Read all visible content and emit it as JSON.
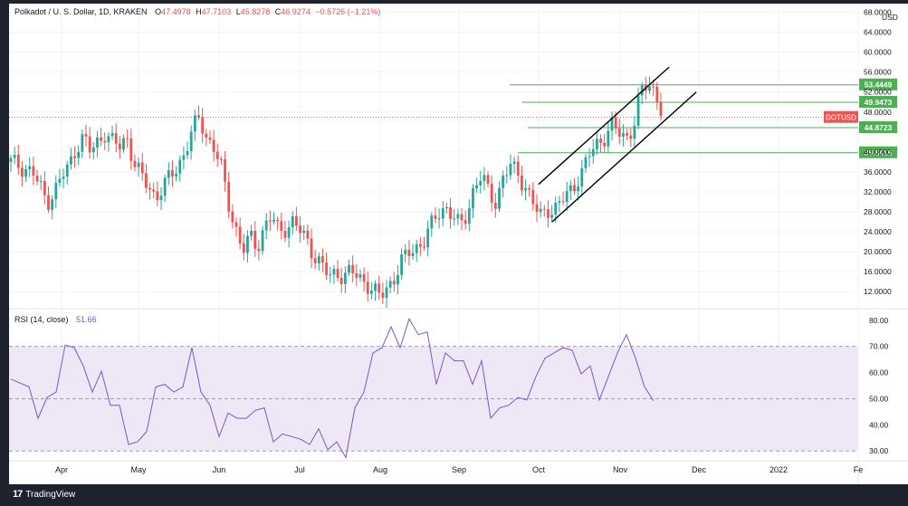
{
  "header": {
    "symbol": "Polkadot / U. S. Dollar, 1D, KRAKEN",
    "o_label": "O",
    "o_value": "47.4978",
    "h_label": "H",
    "h_value": "47.7103",
    "l_label": "L",
    "l_value": "45.8278",
    "c_label": "C",
    "c_value": "46.9274",
    "change": "−0.5726 (−1.21%)"
  },
  "rsi": {
    "title": "RSI (14, close)",
    "value": "51.66"
  },
  "footer": {
    "brand": "TradingView"
  },
  "colors": {
    "up": "#26a69a",
    "down": "#ef5350",
    "level": "#4caf50",
    "rsi_line": "#7e57c2",
    "rsi_band": "#ede7f6",
    "price_line": "#ef5350"
  },
  "chart_data": [
    {
      "type": "candlestick",
      "currency_label": "USD",
      "price_badge": "DOTUSD",
      "y_ticks": [
        "12.0000",
        "16.0000",
        "20.0000",
        "24.0000",
        "28.0000",
        "32.0000",
        "36.0000",
        "40.0000",
        "48.0000",
        "52.0000",
        "56.0000",
        "60.0000",
        "64.0000",
        "68.0000"
      ],
      "ylim": [
        9.5,
        69
      ],
      "x_ticks": [
        "Apr",
        "May",
        "Jun",
        "Jul",
        "Aug",
        "Sep",
        "Oct",
        "Nov",
        "Dec",
        "2022",
        "Fe"
      ],
      "levels": [
        {
          "label": "53.4449",
          "value": 53.4449
        },
        {
          "label": "49.9473",
          "value": 49.9473
        },
        {
          "label": "44.8723",
          "value": 44.8723
        },
        {
          "label": "39.8416",
          "value": 39.8416
        }
      ],
      "current_price": 46.9274,
      "channel": {
        "upper": [
          [
            "Sep 20",
            33.5
          ],
          [
            "Nov 7",
            57
          ]
        ],
        "lower": [
          [
            "Sep 25",
            26
          ],
          [
            "Nov 17",
            52
          ]
        ]
      },
      "close_path": [
        [
          0,
          38
        ],
        [
          3,
          37
        ],
        [
          6,
          36
        ],
        [
          8,
          33
        ],
        [
          10,
          30
        ],
        [
          12,
          32
        ],
        [
          14,
          35
        ],
        [
          16,
          37
        ],
        [
          18,
          41
        ],
        [
          20,
          43
        ],
        [
          22,
          40
        ],
        [
          24,
          42
        ],
        [
          26,
          44
        ],
        [
          28,
          42
        ],
        [
          30,
          41
        ],
        [
          32,
          43
        ],
        [
          34,
          38
        ],
        [
          36,
          35
        ],
        [
          38,
          33
        ],
        [
          40,
          31
        ],
        [
          42,
          33
        ],
        [
          44,
          35
        ],
        [
          46,
          37
        ],
        [
          48,
          40
        ],
        [
          50,
          44
        ],
        [
          52,
          47
        ],
        [
          54,
          43
        ],
        [
          56,
          41
        ],
        [
          58,
          37
        ],
        [
          60,
          30
        ],
        [
          62,
          25
        ],
        [
          64,
          20
        ],
        [
          66,
          23
        ],
        [
          68,
          21
        ],
        [
          70,
          25
        ],
        [
          72,
          27
        ],
        [
          74,
          24
        ],
        [
          76,
          25
        ],
        [
          78,
          26
        ],
        [
          80,
          24
        ],
        [
          82,
          22
        ],
        [
          84,
          19
        ],
        [
          86,
          17
        ],
        [
          88,
          15
        ],
        [
          90,
          16
        ],
        [
          92,
          15
        ],
        [
          94,
          16
        ],
        [
          96,
          15
        ],
        [
          98,
          14
        ],
        [
          100,
          12
        ],
        [
          102,
          11
        ],
        [
          104,
          13
        ],
        [
          106,
          15
        ],
        [
          108,
          18
        ],
        [
          110,
          20
        ],
        [
          112,
          21
        ],
        [
          114,
          22
        ],
        [
          116,
          25
        ],
        [
          118,
          28
        ],
        [
          120,
          29
        ],
        [
          122,
          27
        ],
        [
          124,
          25
        ],
        [
          126,
          28
        ],
        [
          128,
          33
        ],
        [
          130,
          35
        ],
        [
          132,
          32
        ],
        [
          134,
          30
        ],
        [
          136,
          35
        ],
        [
          138,
          37
        ],
        [
          140,
          36
        ],
        [
          142,
          33
        ],
        [
          144,
          30
        ],
        [
          146,
          27
        ],
        [
          148,
          29
        ],
        [
          150,
          28
        ],
        [
          152,
          30
        ],
        [
          154,
          32
        ],
        [
          156,
          34
        ],
        [
          158,
          36
        ],
        [
          160,
          40
        ],
        [
          162,
          42
        ],
        [
          164,
          43
        ],
        [
          166,
          45
        ],
        [
          168,
          44
        ],
        [
          170,
          43
        ],
        [
          172,
          45
        ],
        [
          174,
          52
        ],
        [
          176,
          54
        ],
        [
          178,
          52
        ],
        [
          180,
          47
        ]
      ]
    },
    {
      "type": "line",
      "name": "RSI (14, close)",
      "y_ticks": [
        "30.00",
        "40.00",
        "50.00",
        "60.00",
        "70.00",
        "80.00"
      ],
      "ylim": [
        28,
        82
      ],
      "band": [
        30,
        70
      ],
      "midline": 50,
      "values": [
        [
          0,
          60
        ],
        [
          4,
          52
        ],
        [
          6,
          45
        ],
        [
          8,
          48
        ],
        [
          10,
          55
        ],
        [
          12,
          68
        ],
        [
          14,
          72
        ],
        [
          16,
          60
        ],
        [
          18,
          55
        ],
        [
          20,
          58
        ],
        [
          22,
          50
        ],
        [
          24,
          45
        ],
        [
          26,
          35
        ],
        [
          28,
          31
        ],
        [
          30,
          40
        ],
        [
          32,
          52
        ],
        [
          34,
          58
        ],
        [
          36,
          50
        ],
        [
          38,
          57
        ],
        [
          40,
          67
        ],
        [
          42,
          55
        ],
        [
          44,
          45
        ],
        [
          46,
          38
        ],
        [
          48,
          42
        ],
        [
          50,
          45
        ],
        [
          52,
          40
        ],
        [
          54,
          48
        ],
        [
          56,
          44
        ],
        [
          58,
          36
        ],
        [
          60,
          34
        ],
        [
          62,
          38
        ],
        [
          64,
          32
        ],
        [
          66,
          35
        ],
        [
          68,
          36
        ],
        [
          70,
          33
        ],
        [
          72,
          31
        ],
        [
          74,
          30
        ],
        [
          76,
          44
        ],
        [
          78,
          55
        ],
        [
          80,
          65
        ],
        [
          82,
          72
        ],
        [
          84,
          75
        ],
        [
          86,
          72
        ],
        [
          88,
          78
        ],
        [
          90,
          77
        ],
        [
          92,
          73
        ],
        [
          94,
          58
        ],
        [
          96,
          65
        ],
        [
          98,
          67
        ],
        [
          100,
          62
        ],
        [
          102,
          58
        ],
        [
          104,
          62
        ],
        [
          106,
          45
        ],
        [
          108,
          44
        ],
        [
          110,
          50
        ],
        [
          112,
          48
        ],
        [
          114,
          52
        ],
        [
          116,
          56
        ],
        [
          118,
          68
        ],
        [
          120,
          65
        ],
        [
          122,
          72
        ],
        [
          124,
          66
        ],
        [
          126,
          62
        ],
        [
          128,
          60
        ],
        [
          130,
          52
        ],
        [
          132,
          56
        ],
        [
          134,
          70
        ],
        [
          136,
          72
        ],
        [
          138,
          68
        ],
        [
          140,
          52
        ],
        [
          142,
          51.66
        ]
      ]
    }
  ]
}
